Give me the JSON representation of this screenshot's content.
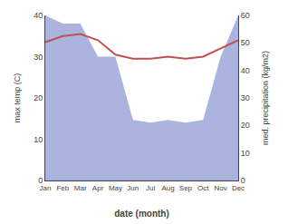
{
  "chart_data": {
    "type": "line",
    "categories": [
      "Jan",
      "Feb",
      "Mar",
      "Apr",
      "May",
      "Jun",
      "Jul",
      "Aug",
      "Sep",
      "Oct",
      "Nov",
      "Dec"
    ],
    "series": [
      {
        "name": "med. precipitation (kg/m2)",
        "type": "area",
        "axis": "y2",
        "color": "#aab4de",
        "values": [
          60,
          57,
          57,
          45,
          45,
          22,
          21,
          22,
          21,
          22,
          45,
          60
        ]
      },
      {
        "name": "max temp (C)",
        "type": "line",
        "color": "#c0504d",
        "values": [
          33.5,
          35.0,
          35.5,
          34.0,
          30.5,
          29.5,
          29.5,
          30.0,
          29.5,
          30.0,
          32.0,
          34.0
        ]
      }
    ],
    "xlabel": "date (month)",
    "ylabel": "max temp (C)",
    "y2label": "med. precipitation (kg/m2)",
    "ylim": [
      0,
      40
    ],
    "yticks": [
      0,
      10,
      20,
      30,
      40
    ],
    "y2lim": [
      0,
      60
    ],
    "y2ticks": [
      0,
      10,
      20,
      30,
      40,
      50,
      60
    ],
    "grid": false
  }
}
